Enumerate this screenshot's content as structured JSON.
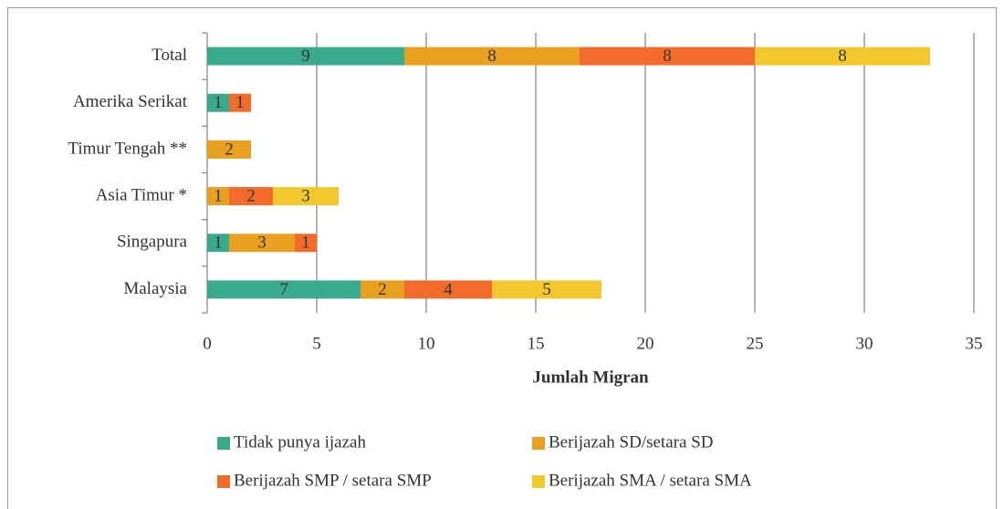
{
  "chart_data": {
    "type": "bar",
    "orientation": "horizontal",
    "stacked": true,
    "xlabel": "Jumlah Migran",
    "categories": [
      "Total",
      "Amerika Serikat",
      "Timur Tengah **",
      "Asia Timur *",
      "Singapura",
      "Malaysia"
    ],
    "series": [
      {
        "name": "Tidak punya ijazah",
        "color": "#3aaa8e",
        "values": [
          9,
          1,
          null,
          null,
          1,
          7
        ]
      },
      {
        "name": "Berijazah SD/setara SD",
        "color": "#e9a021",
        "values": [
          8,
          null,
          2,
          1,
          3,
          2
        ]
      },
      {
        "name": "Berijazah SMP / setara SMP",
        "color": "#f26b2a",
        "values": [
          8,
          1,
          null,
          2,
          1,
          4
        ]
      },
      {
        "name": "Berijazah SMA / setara SMA",
        "color": "#f3c82c",
        "values": [
          8,
          null,
          null,
          3,
          null,
          5
        ]
      }
    ],
    "xlim": [
      0,
      35
    ],
    "xticks": [
      0,
      5,
      10,
      15,
      20,
      25,
      30,
      35
    ],
    "grid": true,
    "legend": "bottom"
  }
}
